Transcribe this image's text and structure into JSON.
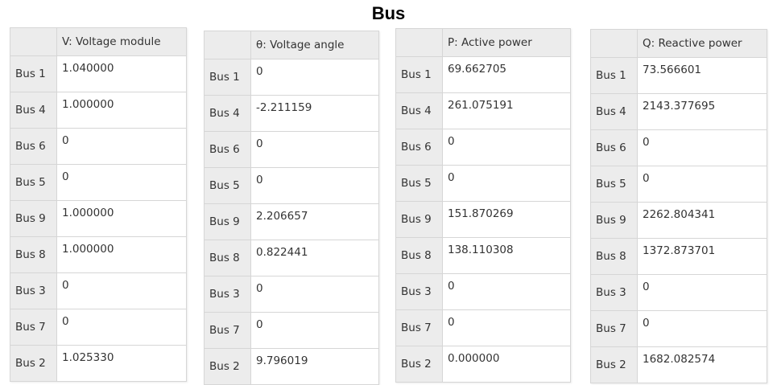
{
  "title": "Bus",
  "tables": [
    {
      "header": "V: Voltage module",
      "rows": [
        {
          "bus": "Bus 1",
          "value": "1.040000"
        },
        {
          "bus": "Bus 4",
          "value": "1.000000"
        },
        {
          "bus": "Bus 6",
          "value": "0"
        },
        {
          "bus": "Bus 5",
          "value": "0"
        },
        {
          "bus": "Bus 9",
          "value": "1.000000"
        },
        {
          "bus": "Bus 8",
          "value": "1.000000"
        },
        {
          "bus": "Bus 3",
          "value": "0"
        },
        {
          "bus": "Bus 7",
          "value": "0"
        },
        {
          "bus": "Bus 2",
          "value": "1.025330"
        }
      ]
    },
    {
      "header": "θ: Voltage angle",
      "rows": [
        {
          "bus": "Bus 1",
          "value": "0"
        },
        {
          "bus": "Bus 4",
          "value": "-2.211159"
        },
        {
          "bus": "Bus 6",
          "value": "0"
        },
        {
          "bus": "Bus 5",
          "value": "0"
        },
        {
          "bus": "Bus 9",
          "value": "2.206657"
        },
        {
          "bus": "Bus 8",
          "value": "0.822441"
        },
        {
          "bus": "Bus 3",
          "value": "0"
        },
        {
          "bus": "Bus 7",
          "value": "0"
        },
        {
          "bus": "Bus 2",
          "value": "9.796019"
        }
      ]
    },
    {
      "header": "P: Active power",
      "rows": [
        {
          "bus": "Bus 1",
          "value": "69.662705"
        },
        {
          "bus": "Bus 4",
          "value": "261.075191"
        },
        {
          "bus": "Bus 6",
          "value": "0"
        },
        {
          "bus": "Bus 5",
          "value": "0"
        },
        {
          "bus": "Bus 9",
          "value": "151.870269"
        },
        {
          "bus": "Bus 8",
          "value": "138.110308"
        },
        {
          "bus": "Bus 3",
          "value": "0"
        },
        {
          "bus": "Bus 7",
          "value": "0"
        },
        {
          "bus": "Bus 2",
          "value": "0.000000"
        }
      ]
    },
    {
      "header": "Q: Reactive power",
      "rows": [
        {
          "bus": "Bus 1",
          "value": "73.566601"
        },
        {
          "bus": "Bus 4",
          "value": "2143.377695"
        },
        {
          "bus": "Bus 6",
          "value": "0"
        },
        {
          "bus": "Bus 5",
          "value": "0"
        },
        {
          "bus": "Bus 9",
          "value": "2262.804341"
        },
        {
          "bus": "Bus 8",
          "value": "1372.873701"
        },
        {
          "bus": "Bus 3",
          "value": "0"
        },
        {
          "bus": "Bus 7",
          "value": "0"
        },
        {
          "bus": "Bus 2",
          "value": "1682.082574"
        }
      ]
    }
  ],
  "colors": {
    "header_bg": "#ececec",
    "grid_line": "#d6d6d6",
    "text": "#333333"
  }
}
